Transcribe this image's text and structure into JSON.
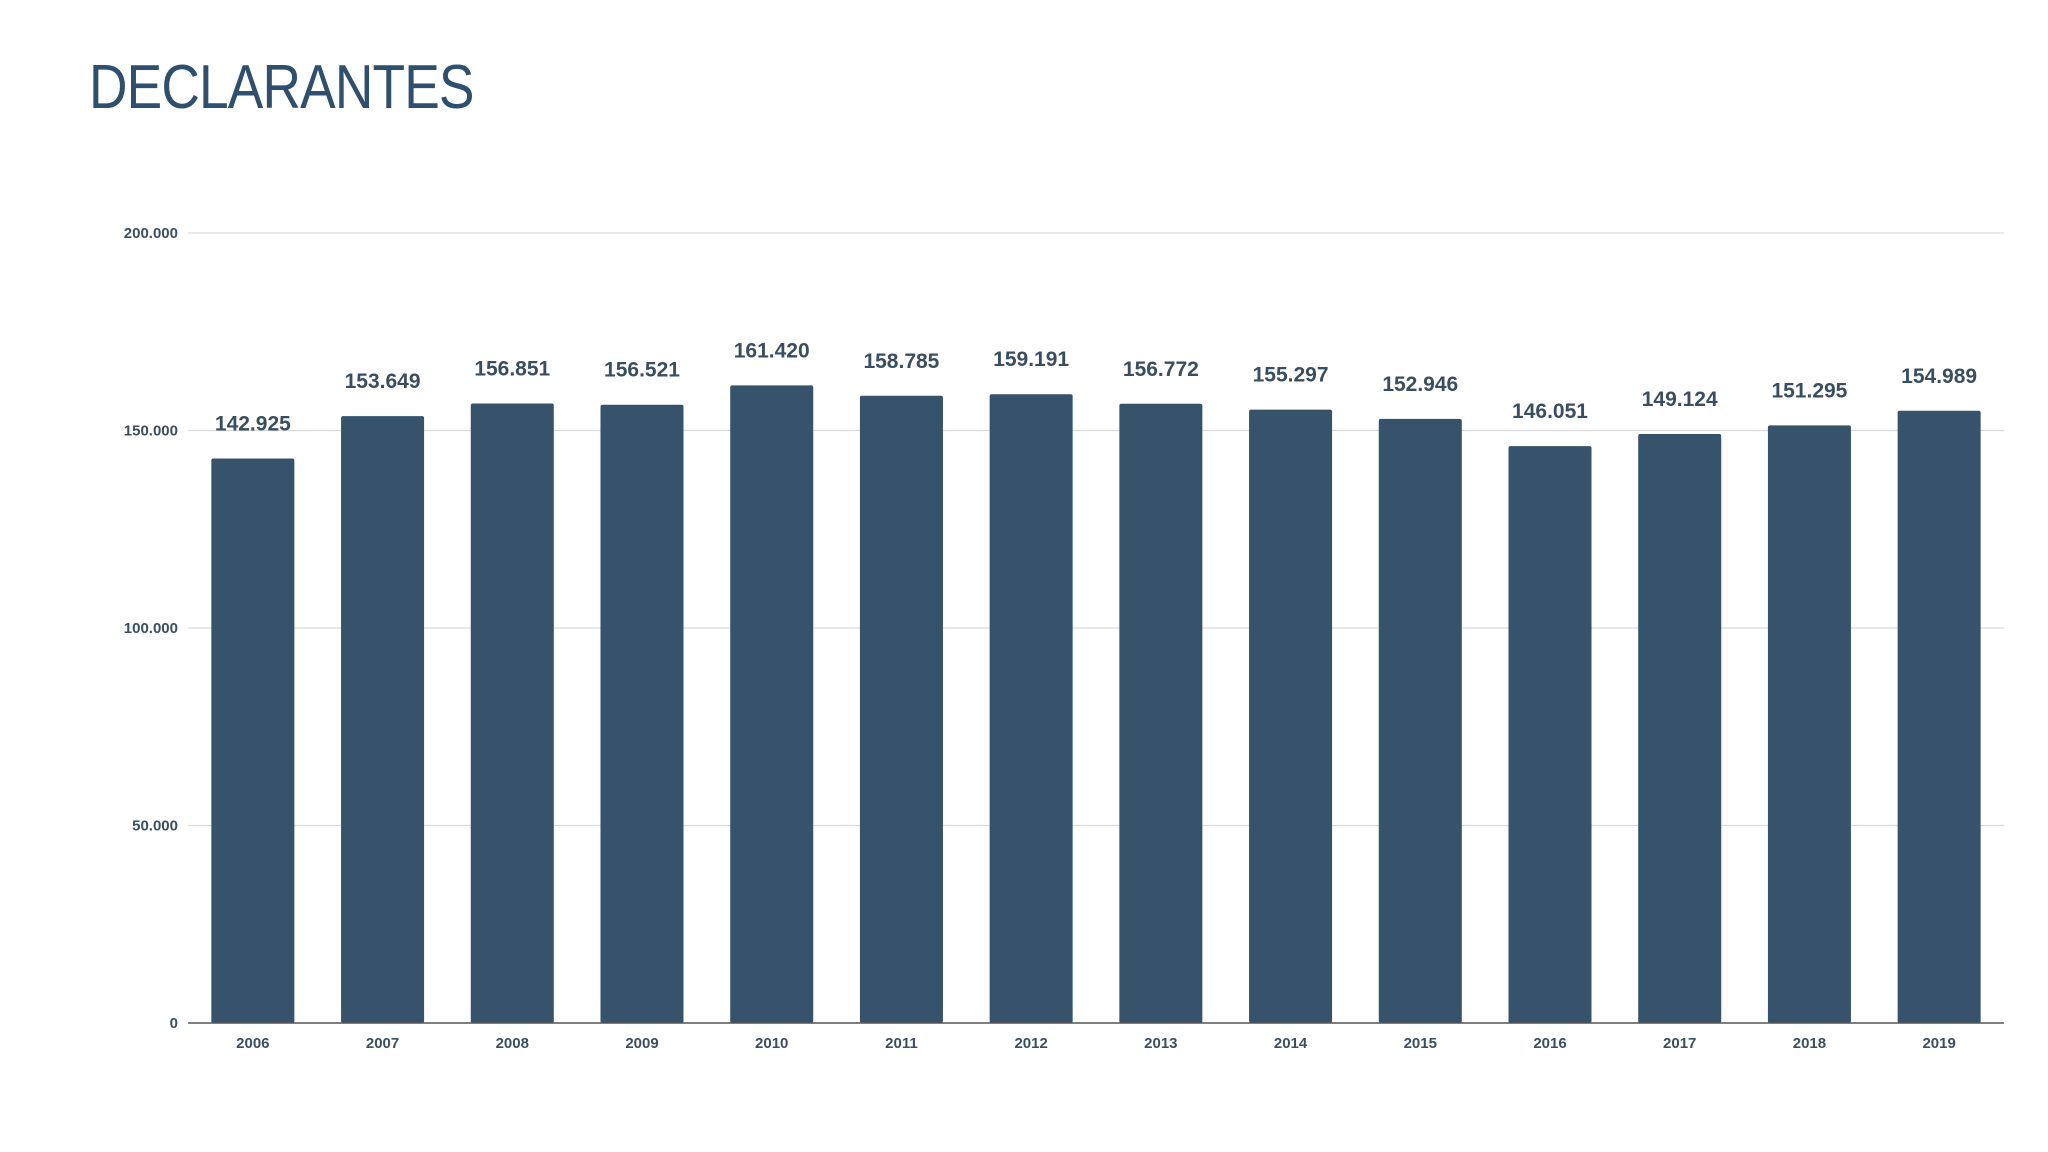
{
  "page": {
    "title": "DECLARANTES"
  },
  "colors": {
    "bar": "#36536b",
    "title": "#2f4f6e",
    "grid": "#d9d9d9",
    "axis": "#555555",
    "text": "#3b4f63"
  },
  "chart_data": {
    "type": "bar",
    "title": "",
    "xlabel": "",
    "ylabel": "",
    "categories": [
      "2006",
      "2007",
      "2008",
      "2009",
      "2010",
      "2011",
      "2012",
      "2013",
      "2014",
      "2015",
      "2016",
      "2017",
      "2018",
      "2019"
    ],
    "values": [
      142925,
      153649,
      156851,
      156521,
      161420,
      158785,
      159191,
      156772,
      155297,
      152946,
      146051,
      149124,
      151295,
      154989
    ],
    "value_labels": [
      "142.925",
      "153.649",
      "156.851",
      "156.521",
      "161.420",
      "158.785",
      "159.191",
      "156.772",
      "155.297",
      "152.946",
      "146.051",
      "149.124",
      "151.295",
      "154.989"
    ],
    "y_ticks": [
      0,
      50000,
      100000,
      150000,
      200000
    ],
    "y_tick_labels": [
      "0",
      "50.000",
      "100.000",
      "150.000",
      "200.000"
    ],
    "ylim": [
      0,
      200000
    ],
    "grid": true,
    "legend": "none"
  }
}
